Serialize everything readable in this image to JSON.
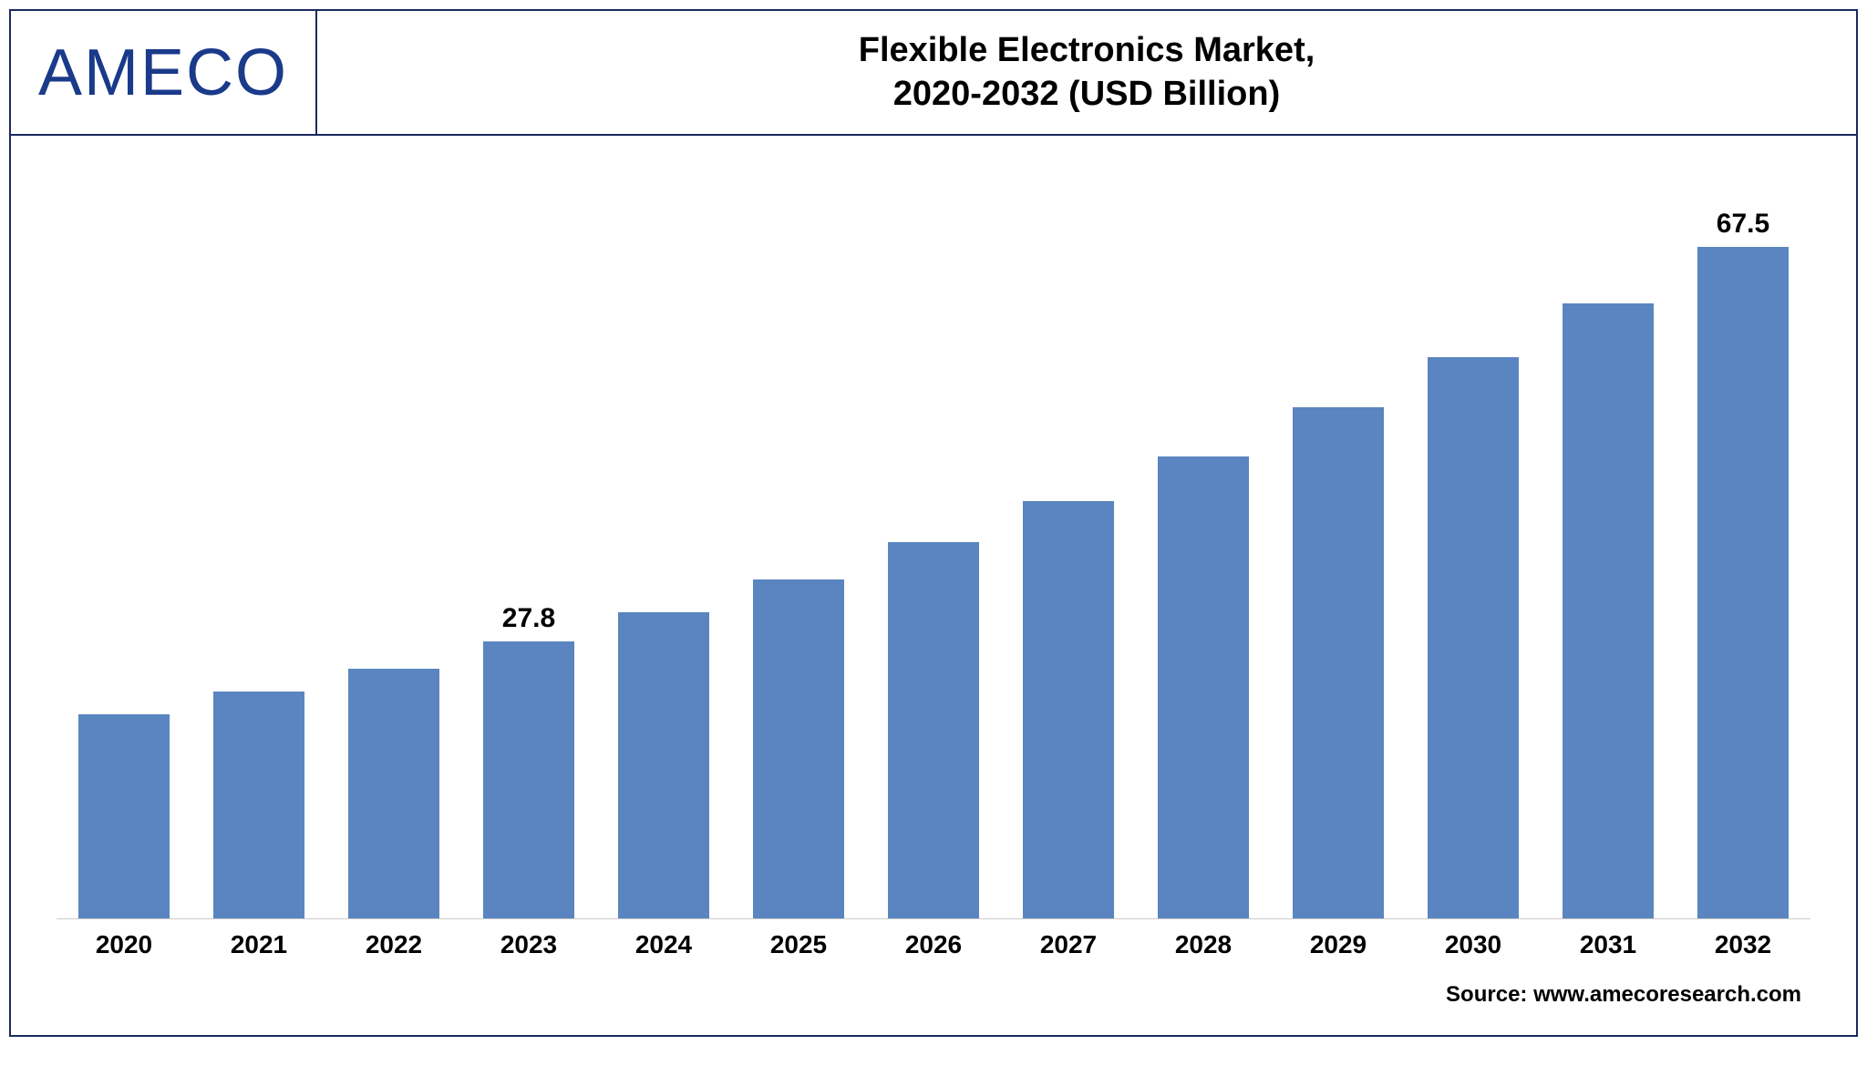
{
  "logo": {
    "text": "AMECO",
    "color": "#1a3a8a"
  },
  "title": {
    "line1": "Flexible Electronics Market,",
    "line2": "2020-2032 (USD Billion)",
    "fontsize": 38,
    "color": "#000000"
  },
  "chart": {
    "type": "bar",
    "bar_color": "#5a85c0",
    "bar_width_pct": 68,
    "background_color": "#ffffff",
    "axis_color": "#cccccc",
    "ymax": 75,
    "categories": [
      "2020",
      "2021",
      "2022",
      "2023",
      "2024",
      "2025",
      "2026",
      "2027",
      "2028",
      "2029",
      "2030",
      "2031",
      "2032"
    ],
    "values": [
      20.5,
      22.8,
      25.1,
      27.8,
      30.8,
      34.1,
      37.8,
      41.9,
      46.4,
      51.4,
      56.4,
      61.8,
      67.5
    ],
    "value_labels": {
      "3": "27.8",
      "12": "67.5"
    },
    "label_fontsize": 30,
    "xlabel_fontsize": 28
  },
  "source": {
    "prefix": "Source: ",
    "text": "www.amecoresearch.com"
  }
}
